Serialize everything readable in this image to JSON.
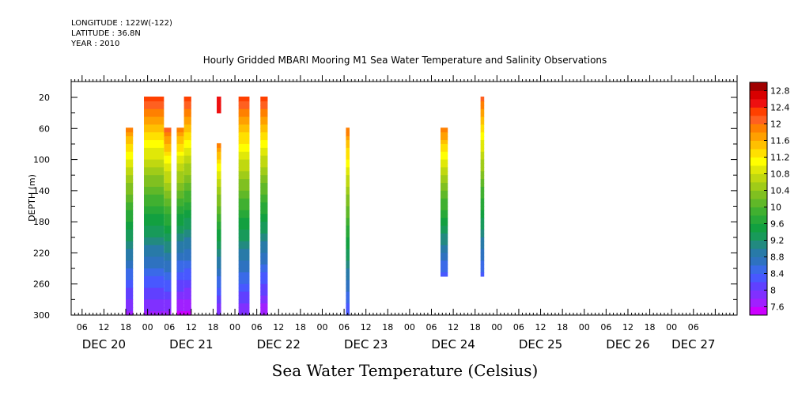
{
  "header": {
    "longitude": "LONGITUDE : 122W(-122)",
    "latitude": "LATITUDE : 36.8N",
    "year": "YEAR : 2010"
  },
  "chart_data": {
    "type": "heatmap",
    "title": "Hourly Gridded MBARI Mooring M1 Sea Water Temperature and Salinity Observations",
    "xlabel": "Sea Water Temperature (Celsius)",
    "ylabel": "DEPTH (m)",
    "x_unit": "hours since DEC 20 00:00",
    "xlim": [
      3,
      186
    ],
    "ylim": [
      300,
      0
    ],
    "y_ticks": [
      20,
      60,
      100,
      140,
      180,
      220,
      260,
      300
    ],
    "x_hour_ticks": [
      6,
      12,
      18,
      0,
      6,
      12,
      18,
      0,
      6,
      12,
      18,
      0,
      6,
      12,
      18,
      0,
      6,
      12,
      18,
      0,
      6,
      12,
      18,
      0,
      6,
      12,
      18,
      0,
      6
    ],
    "x_day_labels": [
      "DEC 20",
      "DEC 21",
      "DEC 22",
      "DEC 23",
      "DEC 24",
      "DEC 25",
      "DEC 26",
      "DEC 27"
    ],
    "colorbar": {
      "tick_labels": [
        "12.8",
        "12.4",
        "12",
        "11.6",
        "11.2",
        "10.8",
        "10.4",
        "10",
        "9.6",
        "9.2",
        "8.8",
        "8.4",
        "8",
        "7.6"
      ],
      "levels": [
        7.6,
        7.8,
        8.0,
        8.2,
        8.4,
        8.6,
        8.8,
        9.0,
        9.2,
        9.4,
        9.6,
        9.8,
        10.0,
        10.2,
        10.4,
        10.6,
        10.8,
        11.0,
        11.2,
        11.4,
        11.6,
        11.8,
        12.0,
        12.2,
        12.4,
        12.6,
        12.8,
        13.0
      ],
      "colors": [
        "#cc00ff",
        "#a020ff",
        "#8030ff",
        "#6040ff",
        "#4858ff",
        "#3a6ae8",
        "#2e72c0",
        "#287aa8",
        "#228a80",
        "#189a5a",
        "#12a040",
        "#28a838",
        "#40b030",
        "#60b828",
        "#80c020",
        "#a0cc18",
        "#c0d810",
        "#e0e808",
        "#ffff00",
        "#ffe000",
        "#ffc000",
        "#ffa000",
        "#ff8000",
        "#ff6020",
        "#ff4000",
        "#ee1010",
        "#d80000",
        "#a00000"
      ]
    },
    "segments": [
      {
        "x": [
          18,
          20
        ],
        "depth": [
          60,
          300
        ],
        "temp_top": 12.1,
        "temp_bottom": 7.9
      },
      {
        "x": [
          23,
          28.5
        ],
        "depth": [
          20,
          300
        ],
        "temp_top": 12.6,
        "temp_bottom": 7.9
      },
      {
        "x": [
          28.5,
          30.5
        ],
        "depth": [
          60,
          300
        ],
        "temp_top": 12.3,
        "temp_bottom": 7.9
      },
      {
        "x": [
          32,
          34
        ],
        "depth": [
          60,
          300
        ],
        "temp_top": 12.1,
        "temp_bottom": 7.7
      },
      {
        "x": [
          34,
          36
        ],
        "depth": [
          20,
          300
        ],
        "temp_top": 12.6,
        "temp_bottom": 7.7
      },
      {
        "x": [
          43,
          44.2
        ],
        "depth": [
          20,
          40
        ],
        "temp_top": 12.6,
        "temp_bottom": 12.6
      },
      {
        "x": [
          43,
          44.2
        ],
        "depth": [
          80,
          300
        ],
        "temp_top": 12.1,
        "temp_bottom": 8.0
      },
      {
        "x": [
          49,
          52
        ],
        "depth": [
          20,
          300
        ],
        "temp_top": 12.6,
        "temp_bottom": 8.0
      },
      {
        "x": [
          55,
          57
        ],
        "depth": [
          20,
          300
        ],
        "temp_top": 12.6,
        "temp_bottom": 7.8
      },
      {
        "x": [
          78.5,
          79.5
        ],
        "depth": [
          60,
          300
        ],
        "temp_top": 12.2,
        "temp_bottom": 8.4
      },
      {
        "x": [
          104.5,
          106.5
        ],
        "depth": [
          60,
          250
        ],
        "temp_top": 12.2,
        "temp_bottom": 8.5
      },
      {
        "x": [
          115.5,
          116.5
        ],
        "depth": [
          20,
          250
        ],
        "temp_top": 12.4,
        "temp_bottom": 8.5
      }
    ]
  }
}
